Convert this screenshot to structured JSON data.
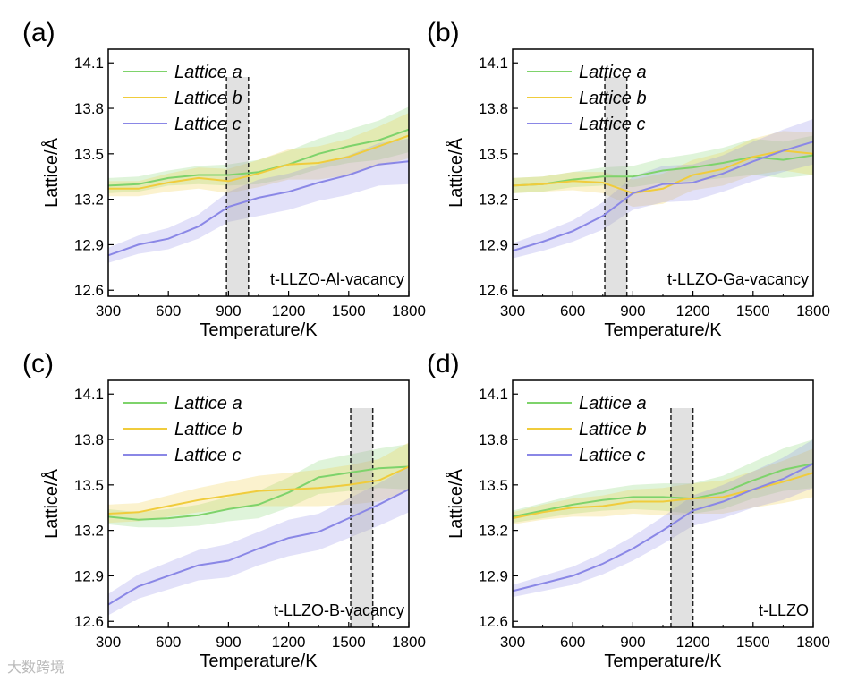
{
  "chart_data": [
    {
      "type": "line",
      "panel_label": "(a)",
      "annotation": "t-LLZO-Al-vacancy",
      "xlabel": "Temperature/K",
      "ylabel": "Lattice/Å",
      "xlim": [
        300,
        1800
      ],
      "ylim": [
        12.56,
        14.19
      ],
      "xticks": [
        "300",
        "600",
        "900",
        "1200",
        "1500",
        "1800"
      ],
      "yticks": [
        "12.6",
        "12.9",
        "13.2",
        "13.5",
        "13.8",
        "14.1"
      ],
      "legend_position": "top-left",
      "transition_region": [
        890,
        1000
      ],
      "x": [
        300,
        450,
        600,
        750,
        900,
        1050,
        1200,
        1350,
        1500,
        1650,
        1800
      ],
      "series": [
        {
          "name": "Lattice a",
          "color": "#7ed36b",
          "values": [
            13.29,
            13.3,
            13.34,
            13.36,
            13.36,
            13.38,
            13.43,
            13.5,
            13.55,
            13.59,
            13.66
          ],
          "band": [
            0.05,
            0.05,
            0.05,
            0.06,
            0.07,
            0.08,
            0.09,
            0.1,
            0.11,
            0.13,
            0.15
          ]
        },
        {
          "name": "Lattice b",
          "color": "#f0cc3c",
          "values": [
            13.27,
            13.27,
            13.31,
            13.34,
            13.32,
            13.37,
            13.43,
            13.44,
            13.48,
            13.55,
            13.62
          ],
          "band": [
            0.05,
            0.05,
            0.06,
            0.07,
            0.08,
            0.09,
            0.1,
            0.11,
            0.12,
            0.13,
            0.15
          ]
        },
        {
          "name": "Lattice c",
          "color": "#8a87e6",
          "values": [
            12.83,
            12.9,
            12.94,
            13.02,
            13.15,
            13.21,
            13.25,
            13.31,
            13.36,
            13.43,
            13.45
          ],
          "band": [
            0.05,
            0.06,
            0.07,
            0.08,
            0.1,
            0.12,
            0.12,
            0.12,
            0.13,
            0.14,
            0.15
          ]
        }
      ]
    },
    {
      "type": "line",
      "panel_label": "(b)",
      "annotation": "t-LLZO-Ga-vacancy",
      "xlabel": "Temperature/K",
      "ylabel": "Lattice/Å",
      "xlim": [
        300,
        1800
      ],
      "ylim": [
        12.56,
        14.19
      ],
      "xticks": [
        "300",
        "600",
        "900",
        "1200",
        "1500",
        "1800"
      ],
      "yticks": [
        "12.6",
        "12.9",
        "13.2",
        "13.5",
        "13.8",
        "14.1"
      ],
      "legend_position": "top-left",
      "transition_region": [
        760,
        870
      ],
      "x": [
        300,
        450,
        600,
        750,
        900,
        1050,
        1200,
        1350,
        1500,
        1650,
        1800
      ],
      "series": [
        {
          "name": "Lattice a",
          "color": "#7ed36b",
          "values": [
            13.29,
            13.3,
            13.33,
            13.35,
            13.35,
            13.39,
            13.41,
            13.44,
            13.48,
            13.46,
            13.49
          ],
          "band": [
            0.05,
            0.05,
            0.05,
            0.06,
            0.07,
            0.08,
            0.09,
            0.1,
            0.12,
            0.12,
            0.13
          ]
        },
        {
          "name": "Lattice b",
          "color": "#f0cc3c",
          "values": [
            13.29,
            13.3,
            13.32,
            13.31,
            13.24,
            13.27,
            13.36,
            13.4,
            13.48,
            13.52,
            13.5
          ],
          "band": [
            0.05,
            0.05,
            0.06,
            0.07,
            0.09,
            0.1,
            0.1,
            0.11,
            0.12,
            0.13,
            0.14
          ]
        },
        {
          "name": "Lattice c",
          "color": "#8a87e6",
          "values": [
            12.86,
            12.92,
            12.99,
            13.09,
            13.24,
            13.3,
            13.31,
            13.37,
            13.45,
            13.52,
            13.58
          ],
          "band": [
            0.05,
            0.06,
            0.07,
            0.09,
            0.11,
            0.12,
            0.12,
            0.12,
            0.13,
            0.14,
            0.15
          ]
        }
      ]
    },
    {
      "type": "line",
      "panel_label": "(c)",
      "annotation": "t-LLZO-B-vacancy",
      "xlabel": "Temperature/K",
      "ylabel": "Lattice/Å",
      "xlim": [
        300,
        1800
      ],
      "ylim": [
        12.56,
        14.19
      ],
      "xticks": [
        "300",
        "600",
        "900",
        "1200",
        "1500",
        "1800"
      ],
      "yticks": [
        "12.6",
        "12.9",
        "13.2",
        "13.5",
        "13.8",
        "14.1"
      ],
      "legend_position": "top-left",
      "transition_region": [
        1510,
        1620
      ],
      "x": [
        300,
        450,
        600,
        750,
        900,
        1050,
        1200,
        1350,
        1500,
        1650,
        1800
      ],
      "series": [
        {
          "name": "Lattice a",
          "color": "#7ed36b",
          "values": [
            13.29,
            13.27,
            13.28,
            13.3,
            13.34,
            13.37,
            13.45,
            13.55,
            13.58,
            13.61,
            13.62
          ],
          "band": [
            0.05,
            0.05,
            0.06,
            0.07,
            0.08,
            0.09,
            0.1,
            0.11,
            0.12,
            0.13,
            0.15
          ]
        },
        {
          "name": "Lattice b",
          "color": "#f0cc3c",
          "values": [
            13.31,
            13.32,
            13.36,
            13.4,
            13.43,
            13.46,
            13.47,
            13.48,
            13.5,
            13.53,
            13.62
          ],
          "band": [
            0.06,
            0.06,
            0.07,
            0.08,
            0.09,
            0.1,
            0.11,
            0.12,
            0.13,
            0.14,
            0.16
          ]
        },
        {
          "name": "Lattice c",
          "color": "#8a87e6",
          "values": [
            12.71,
            12.83,
            12.9,
            12.97,
            13.0,
            13.08,
            13.15,
            13.19,
            13.28,
            13.37,
            13.47
          ],
          "band": [
            0.07,
            0.08,
            0.09,
            0.1,
            0.11,
            0.11,
            0.12,
            0.12,
            0.13,
            0.14,
            0.15
          ]
        }
      ]
    },
    {
      "type": "line",
      "panel_label": "(d)",
      "annotation": "t-LLZO",
      "xlabel": "Temperature/K",
      "ylabel": "Lattice/Å",
      "xlim": [
        300,
        1800
      ],
      "ylim": [
        12.56,
        14.19
      ],
      "xticks": [
        "300",
        "600",
        "900",
        "1200",
        "1500",
        "1800"
      ],
      "yticks": [
        "12.6",
        "12.9",
        "13.2",
        "13.5",
        "13.8",
        "14.1"
      ],
      "legend_position": "top-left",
      "transition_region": [
        1090,
        1200
      ],
      "x": [
        300,
        450,
        600,
        750,
        900,
        1050,
        1200,
        1350,
        1500,
        1650,
        1800
      ],
      "series": [
        {
          "name": "Lattice a",
          "color": "#7ed36b",
          "values": [
            13.29,
            13.33,
            13.37,
            13.4,
            13.42,
            13.42,
            13.41,
            13.45,
            13.53,
            13.6,
            13.64
          ],
          "band": [
            0.04,
            0.05,
            0.06,
            0.07,
            0.08,
            0.09,
            0.1,
            0.11,
            0.12,
            0.14,
            0.16
          ]
        },
        {
          "name": "Lattice b",
          "color": "#f0cc3c",
          "values": [
            13.28,
            13.32,
            13.35,
            13.36,
            13.39,
            13.39,
            13.41,
            13.42,
            13.47,
            13.52,
            13.58
          ],
          "band": [
            0.04,
            0.05,
            0.06,
            0.07,
            0.08,
            0.09,
            0.1,
            0.11,
            0.12,
            0.14,
            0.16
          ]
        },
        {
          "name": "Lattice c",
          "color": "#8a87e6",
          "values": [
            12.8,
            12.85,
            12.9,
            12.98,
            13.08,
            13.2,
            13.33,
            13.39,
            13.47,
            13.54,
            13.64
          ],
          "band": [
            0.04,
            0.05,
            0.06,
            0.07,
            0.08,
            0.09,
            0.1,
            0.11,
            0.12,
            0.14,
            0.16
          ]
        }
      ]
    }
  ],
  "watermark": "大数跨境"
}
